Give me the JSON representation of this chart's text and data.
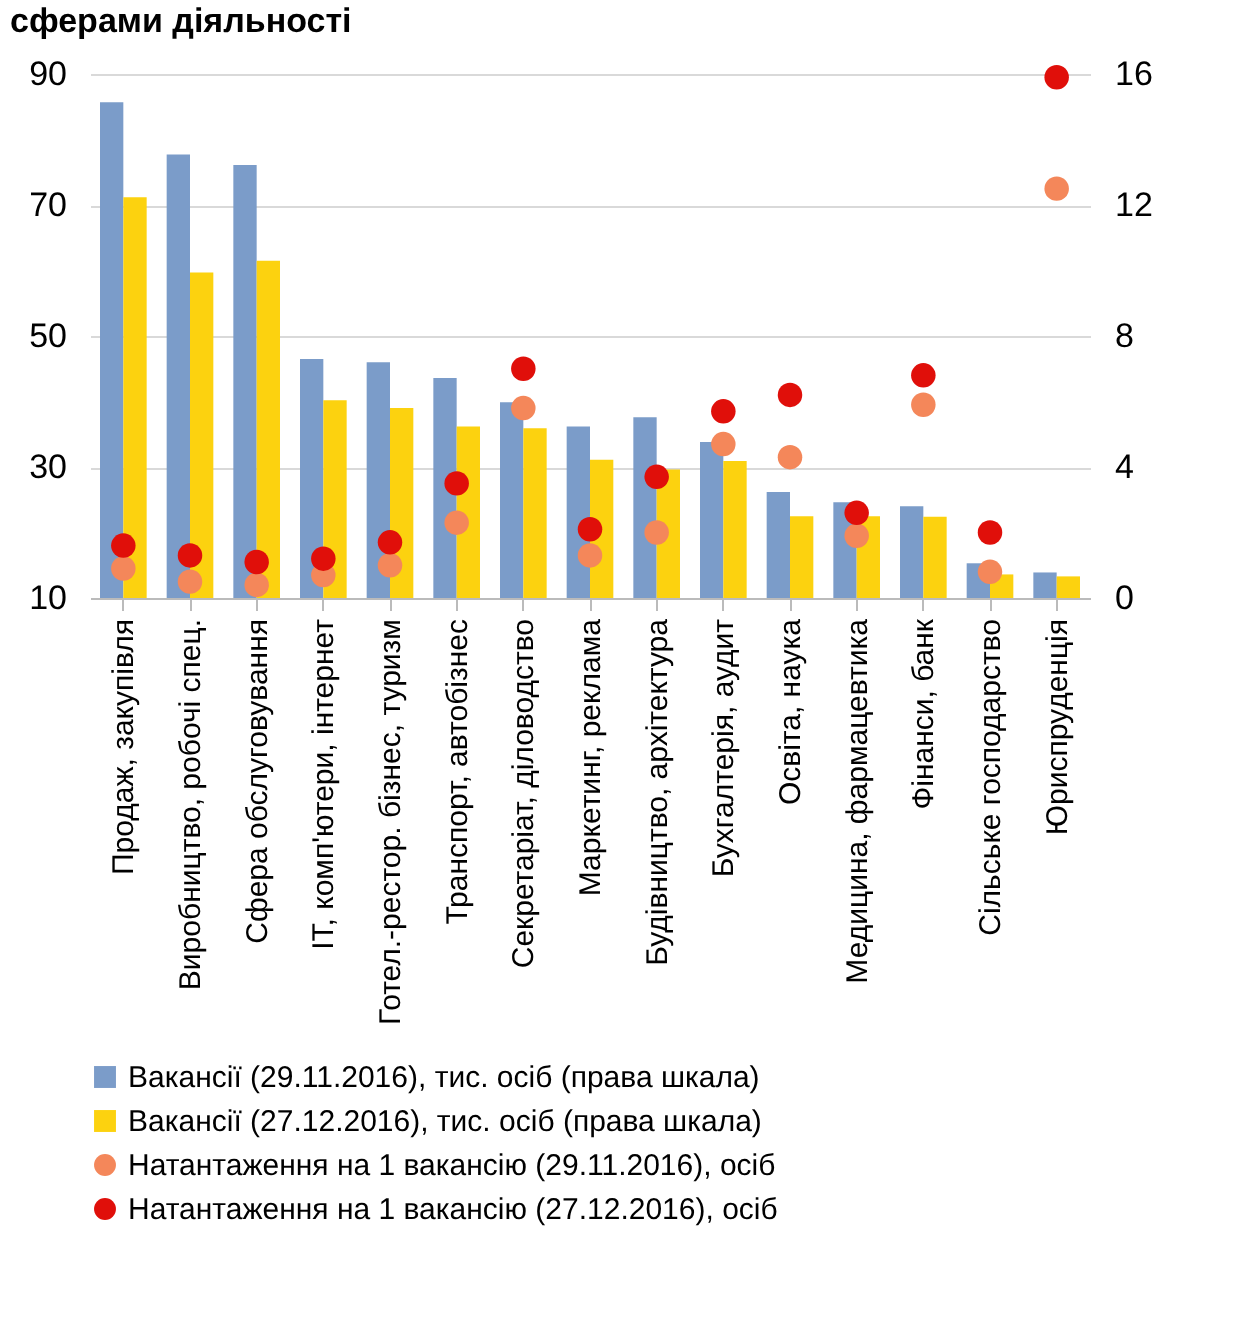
{
  "chart_data": {
    "type": "bar",
    "title": "сферами діяльності",
    "categories": [
      "Продаж, закупівля",
      "Виробництво, робочі спец.",
      "Сфера обслуговування",
      "ІТ, комп'ютери, інтернет",
      "Готел.-рестор. бізнес, туризм",
      "Транспорт, автобізнес",
      "Секретаріат, діловодство",
      "Маркетинг, реклама",
      "Будівництво, архітектура",
      "Бухгалтерія, аудит",
      "Освіта, наука",
      "Медицина, фармацевтика",
      "Фінанси, банк",
      "Сільське господарство",
      "Юриспруденція"
    ],
    "series": [
      {
        "name": "Вакансії (29.11.2016), тис. осіб (права шкала)",
        "axis": "y",
        "color": "#7b9cc9",
        "values": [
          85.7,
          77.7,
          76.1,
          46.5,
          46.0,
          43.6,
          39.9,
          36.2,
          37.6,
          33.8,
          26.2,
          24.6,
          24.0,
          15.3,
          13.9
        ]
      },
      {
        "name": "Вакансії (27.12.2016), тис. осіб (права шкала)",
        "axis": "y",
        "color": "#fcd20f",
        "values": [
          71.2,
          59.7,
          61.5,
          40.2,
          39.0,
          36.2,
          35.9,
          31.1,
          29.6,
          30.9,
          22.5,
          22.5,
          22.4,
          13.6,
          13.3
        ]
      },
      {
        "name": "Натантаження на 1 вакансію (29.11.2016), осіб",
        "type": "scatter",
        "axis": "y2",
        "color": "#f4875a",
        "values": [
          0.9,
          0.5,
          0.4,
          0.7,
          1.0,
          2.3,
          5.8,
          1.3,
          2.0,
          4.7,
          4.3,
          1.9,
          5.9,
          0.8,
          12.5
        ]
      },
      {
        "name": "Натантаження на 1 вакансію (27.12.2016), осіб",
        "type": "scatter",
        "axis": "y2",
        "color": "#e00f0a",
        "values": [
          1.6,
          1.3,
          1.1,
          1.2,
          1.7,
          3.5,
          7.0,
          2.1,
          3.7,
          5.7,
          6.2,
          2.6,
          6.8,
          2.0,
          15.9
        ]
      }
    ],
    "ylim": [
      10,
      90
    ],
    "yticks": [
      10,
      30,
      50,
      70,
      90
    ],
    "y2lim": [
      0,
      16
    ],
    "y2ticks": [
      0,
      4,
      8,
      12,
      16
    ],
    "grid": "y",
    "legend": "bottom",
    "marker": "circle"
  }
}
